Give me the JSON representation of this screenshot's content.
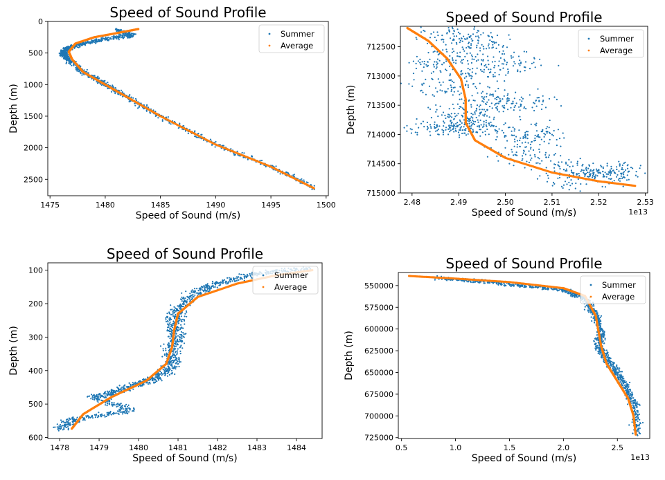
{
  "chart_data": [
    {
      "type": "scatter",
      "title": "Speed of Sound Profile",
      "xlabel": "Speed of Sound (m/s)",
      "ylabel": "Depth (m)",
      "xlim": [
        1474.8,
        1500.2
      ],
      "ylim": [
        2760,
        0
      ],
      "x_ticks": [
        1475,
        1480,
        1485,
        1490,
        1495,
        1500
      ],
      "y_ticks": [
        0,
        500,
        1000,
        1500,
        2000,
        2500
      ],
      "x_exponent": "",
      "legend": {
        "position": "top-right",
        "entries": [
          "Summer",
          "Average"
        ]
      },
      "series": [
        {
          "name": "Summer",
          "color": "#1f77b4",
          "x": [
            1481,
            1482.5,
            1480,
            1478,
            1476.6,
            1476.1,
            1476.7,
            1478,
            1480,
            1482,
            1485,
            1490,
            1495,
            1499
          ],
          "y": [
            130,
            220,
            280,
            350,
            420,
            500,
            600,
            800,
            1000,
            1200,
            1500,
            1950,
            2300,
            2650
          ],
          "spread_x": 0.35,
          "spread_y": 25
        },
        {
          "name": "Average",
          "color": "#ff7f0e",
          "x": [
            1483,
            1481.5,
            1479,
            1477.3,
            1476.7,
            1477,
            1478,
            1480,
            1482,
            1485,
            1490,
            1495,
            1499
          ],
          "y": [
            120,
            170,
            250,
            350,
            480,
            600,
            800,
            1000,
            1200,
            1500,
            1950,
            2300,
            2650
          ]
        }
      ]
    },
    {
      "type": "scatter",
      "title": "Speed of Sound Profile",
      "xlabel": "Speed of Sound (m/s)",
      "ylabel": "Depth (m)",
      "xlim": [
        2.4775,
        2.5305
      ],
      "ylim": [
        715000,
        712150
      ],
      "x_ticks": [
        2.48,
        2.49,
        2.5,
        2.51,
        2.52,
        2.53
      ],
      "y_ticks": [
        712500,
        713000,
        713500,
        714000,
        714500,
        715000
      ],
      "x_exponent": "1e13",
      "legend": {
        "position": "top-right",
        "entries": [
          "Summer",
          "Average"
        ]
      },
      "series": [
        {
          "name": "Summer",
          "color": "#1f77b4",
          "x": [
            2.485,
            2.496,
            2.483,
            2.505,
            2.484,
            2.507,
            2.489,
            2.495,
            2.483,
            2.508,
            2.502,
            2.518,
            2.526,
            2.512
          ],
          "y": [
            712220,
            712400,
            712800,
            712750,
            713200,
            713450,
            713600,
            713850,
            713900,
            713950,
            714350,
            714700,
            714600,
            714820
          ],
          "spread_x": 0.0055,
          "spread_y": 140
        },
        {
          "name": "Average",
          "color": "#ff7f0e",
          "x": [
            2.479,
            2.4835,
            2.4875,
            2.4905,
            2.4915,
            2.4915,
            2.4935,
            2.5,
            2.51,
            2.52,
            2.528
          ],
          "y": [
            712180,
            712400,
            712700,
            713050,
            713400,
            713800,
            714100,
            714400,
            714650,
            714800,
            714880
          ]
        }
      ]
    },
    {
      "type": "scatter",
      "title": "Speed of Sound Profile",
      "xlabel": "Speed of Sound (m/s)",
      "ylabel": "Depth (m)",
      "xlim": [
        1477.7,
        1484.65
      ],
      "ylim": [
        603,
        78
      ],
      "x_ticks": [
        1478,
        1479,
        1480,
        1481,
        1482,
        1483,
        1484
      ],
      "y_ticks": [
        100,
        200,
        300,
        400,
        500,
        600
      ],
      "x_exponent": "",
      "legend": {
        "position": "top-right",
        "entries": [
          "Summer",
          "Average"
        ]
      },
      "series": [
        {
          "name": "Summer",
          "color": "#1f77b4",
          "x": [
            1484.3,
            1483,
            1482,
            1481.4,
            1481,
            1480.9,
            1481,
            1480.8,
            1480.9,
            1480.5,
            1480,
            1479.5,
            1478.9,
            1479.8,
            1478.4,
            1478
          ],
          "y": [
            95,
            110,
            140,
            170,
            220,
            260,
            300,
            340,
            380,
            420,
            440,
            460,
            480,
            520,
            545,
            575
          ],
          "spread_x": 0.2,
          "spread_y": 6
        },
        {
          "name": "Average",
          "color": "#ff7f0e",
          "x": [
            1484.4,
            1483.5,
            1482.5,
            1481.5,
            1481,
            1480.9,
            1480.85,
            1480.7,
            1480.2,
            1479.3,
            1478.6,
            1478.3
          ],
          "y": [
            100,
            115,
            140,
            180,
            230,
            280,
            330,
            380,
            430,
            480,
            530,
            575
          ]
        }
      ]
    },
    {
      "type": "scatter",
      "title": "Speed of Sound Profile",
      "xlabel": "Speed of Sound (m/s)",
      "ylabel": "Depth (m)",
      "xlim": [
        0.47,
        2.8
      ],
      "ylim": [
        726000,
        535000
      ],
      "x_ticks": [
        0.5,
        1.0,
        1.5,
        2.0,
        2.5
      ],
      "y_ticks": [
        550000,
        575000,
        600000,
        625000,
        650000,
        675000,
        700000,
        725000
      ],
      "x_exponent": "1e13",
      "legend": {
        "position": "top-right",
        "entries": [
          "Summer",
          "Average"
        ]
      },
      "series": [
        {
          "name": "Summer",
          "color": "#1f77b4",
          "x": [
            0.82,
            1.2,
            1.6,
            2.0,
            2.2,
            2.3,
            2.35,
            2.33,
            2.4,
            2.5,
            2.6,
            2.66,
            2.68
          ],
          "y": [
            541000,
            545000,
            550000,
            555000,
            565000,
            585000,
            605000,
            620000,
            635000,
            650000,
            670000,
            690000,
            722000
          ],
          "spread_x": 0.04,
          "spread_y": 1600
        },
        {
          "name": "Average",
          "color": "#ff7f0e",
          "x": [
            0.57,
            1.0,
            1.5,
            2.0,
            2.2,
            2.3,
            2.35,
            2.4,
            2.5,
            2.6,
            2.65,
            2.67
          ],
          "y": [
            539000,
            542000,
            546000,
            553000,
            562000,
            585000,
            620000,
            640000,
            660000,
            680000,
            700000,
            722000
          ]
        }
      ]
    }
  ]
}
